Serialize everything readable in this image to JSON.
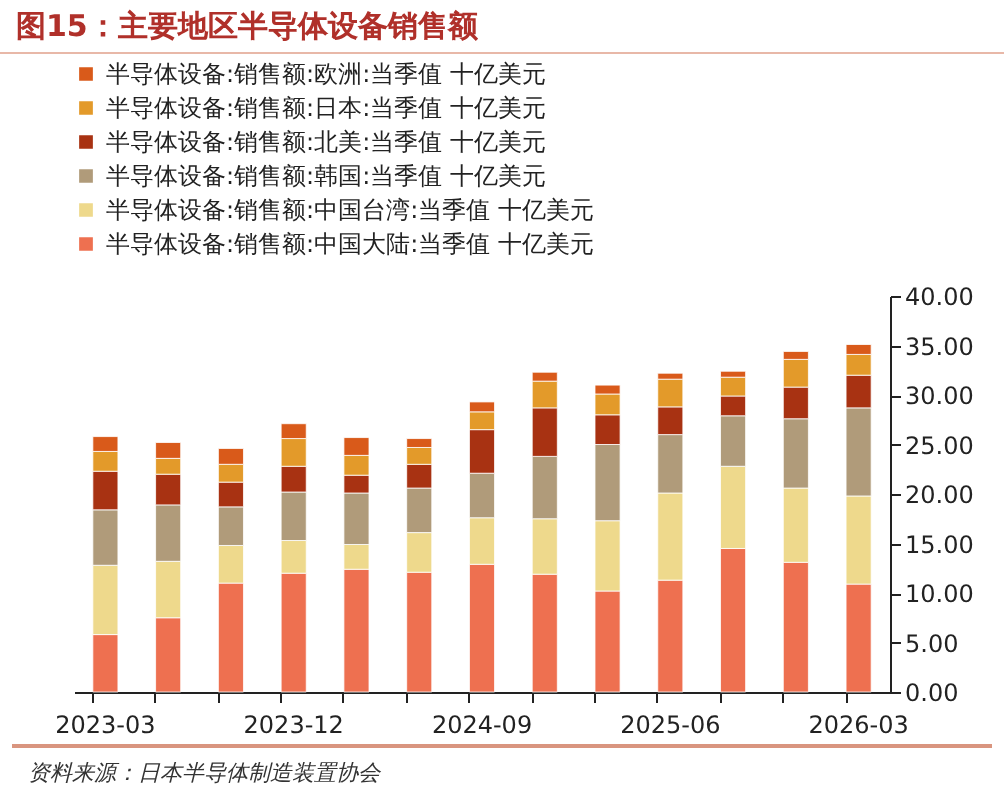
{
  "chart_data": {
    "type": "bar",
    "stacked": true,
    "title": "图15：主要地区半导体设备销售额",
    "annotations": [
      "资料来源：日本半导体制造装置协会"
    ],
    "categories": [
      "2023-03",
      null,
      null,
      "2023-12",
      null,
      null,
      "2024-09",
      null,
      null,
      "2025-06",
      null,
      null,
      "2026-03"
    ],
    "series": [
      {
        "name": "半导体设备:销售额:中国大陆:当季值 十亿美元",
        "color": "#ee7050",
        "values": [
          5.8,
          7.5,
          11.0,
          12.0,
          12.4,
          12.1,
          12.9,
          11.9,
          10.2,
          11.3,
          14.5,
          13.1,
          10.9
        ]
      },
      {
        "name": "半导体设备:销售额:中国台湾:当季值 十亿美元",
        "color": "#eed98c",
        "values": [
          7.0,
          5.7,
          3.8,
          3.3,
          2.5,
          4.0,
          4.7,
          5.6,
          7.1,
          8.8,
          8.3,
          7.5,
          8.9
        ]
      },
      {
        "name": "半导体设备:销售额:韩国:当季值 十亿美元",
        "color": "#b09b7a",
        "values": [
          5.6,
          5.7,
          3.9,
          4.9,
          5.2,
          4.5,
          4.5,
          6.3,
          7.7,
          5.9,
          5.1,
          7.0,
          8.9
        ]
      },
      {
        "name": "半导体设备:销售额:北美:当季值 十亿美元",
        "color": "#a83212",
        "values": [
          3.9,
          3.1,
          2.5,
          2.6,
          1.8,
          2.4,
          4.4,
          4.9,
          3.0,
          2.8,
          2.0,
          3.2,
          3.3
        ]
      },
      {
        "name": "半导体设备:销售额:日本:当季值 十亿美元",
        "color": "#e39a2a",
        "values": [
          2.0,
          1.6,
          1.8,
          2.8,
          2.0,
          1.7,
          1.8,
          2.7,
          2.1,
          2.8,
          1.9,
          2.8,
          2.1
        ]
      },
      {
        "name": "半导体设备:销售额:欧洲:当季值 十亿美元",
        "color": "#d95a1a",
        "values": [
          1.5,
          1.6,
          1.6,
          1.5,
          1.8,
          0.9,
          1.0,
          0.9,
          0.9,
          0.6,
          0.6,
          0.8,
          1.0
        ]
      }
    ],
    "ylim": [
      0,
      40
    ],
    "yticks": [
      {
        "value": 0,
        "label": "0.00"
      },
      {
        "value": 5,
        "label": "5.00"
      },
      {
        "value": 10,
        "label": "10.00"
      },
      {
        "value": 15,
        "label": "15.00"
      },
      {
        "value": 20,
        "label": "20.00"
      },
      {
        "value": 25,
        "label": "25.00"
      },
      {
        "value": 30,
        "label": "30.00"
      },
      {
        "value": 35,
        "label": "35.00"
      },
      {
        "value": 40,
        "label": "40.00"
      }
    ],
    "legend": "top left"
  }
}
